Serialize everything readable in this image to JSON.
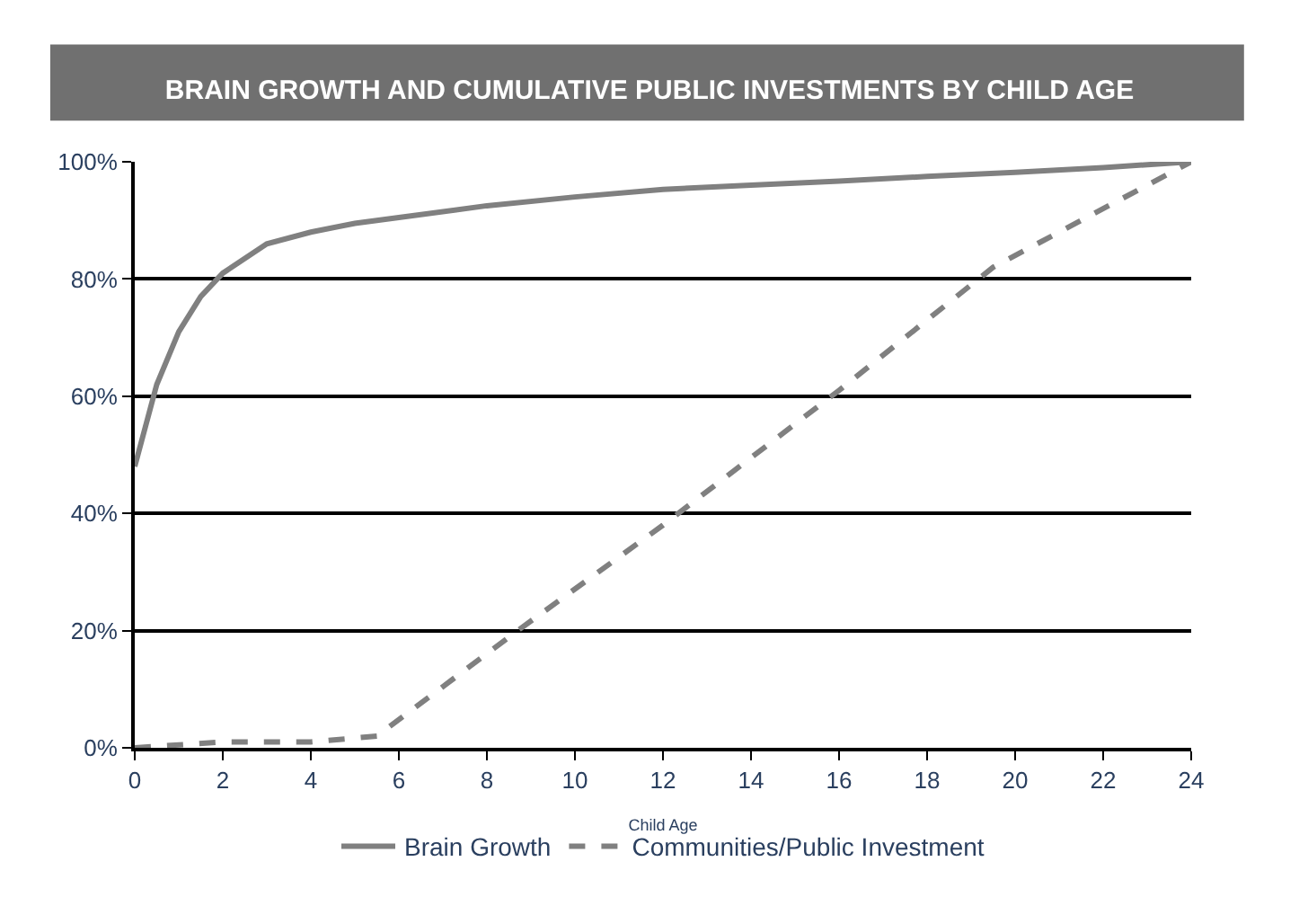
{
  "chart_data": {
    "type": "line",
    "title": "BRAIN GROWTH AND CUMULATIVE PUBLIC INVESTMENTS BY CHILD AGE",
    "xlabel": "Child Age",
    "series": [
      {
        "name": "Brain Growth",
        "color": "#808080",
        "line_style": "solid",
        "x": [
          0,
          0.5,
          1,
          1.5,
          2,
          3,
          4,
          5,
          6,
          8,
          10,
          12,
          14,
          16,
          18,
          20,
          22,
          24
        ],
        "values": [
          48,
          62,
          71,
          77,
          81,
          86,
          88,
          89.5,
          90.5,
          92.5,
          94,
          95.3,
          96,
          96.7,
          97.5,
          98.2,
          99,
          100
        ]
      },
      {
        "name": "Communities/Public Investment",
        "color": "#808080",
        "line_style": "dashed",
        "x": [
          0,
          2,
          4,
          5.5,
          8.7,
          12,
          16,
          19.5,
          24
        ],
        "values": [
          0,
          1,
          1,
          2,
          20,
          38,
          61,
          82,
          100
        ]
      }
    ],
    "xlim": [
      0,
      24
    ],
    "xticks": [
      0,
      2,
      4,
      6,
      8,
      10,
      12,
      14,
      16,
      18,
      20,
      22,
      24
    ],
    "ylim": [
      0,
      100
    ],
    "yticks": [
      {
        "value": 0,
        "label": "0%"
      },
      {
        "value": 20,
        "label": "20%"
      },
      {
        "value": 40,
        "label": "40%"
      },
      {
        "value": 60,
        "label": "60%"
      },
      {
        "value": 80,
        "label": "80%"
      },
      {
        "value": 100,
        "label": "100%"
      }
    ],
    "grid": "y",
    "legend": "bottom",
    "marker": "none"
  }
}
